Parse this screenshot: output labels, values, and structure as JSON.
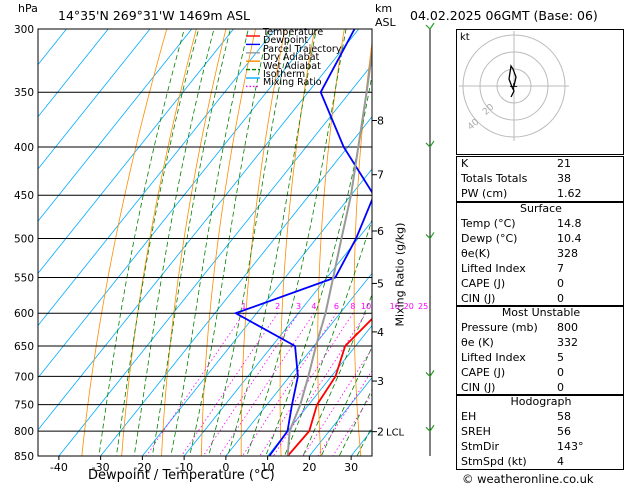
{
  "header": {
    "left_unit": "hPa",
    "location": "14°35'N  269°31'W  1469m  ASL",
    "right_unit_top": "km",
    "right_unit_bottom": "ASL",
    "datetime": "04.02.2025  06GMT  (Base: 06)"
  },
  "chart_data": {
    "type": "line",
    "title": "",
    "xlabel": "Dewpoint / Temperature (°C)",
    "y2label": "Mixing Ratio (g/kg)",
    "x_ticks": [
      -40,
      -30,
      -20,
      -10,
      0,
      10,
      20,
      30
    ],
    "pressure_levels": [
      300,
      350,
      400,
      450,
      500,
      550,
      600,
      650,
      700,
      750,
      800,
      850
    ],
    "xlim": [
      -45,
      35
    ],
    "ylim": [
      850,
      300
    ],
    "skew": "temperature lines slanted ~45°",
    "km_ticks": [
      {
        "km": 8,
        "p": 375
      },
      {
        "km": 7,
        "p": 428
      },
      {
        "km": 6,
        "p": 491
      },
      {
        "km": 5,
        "p": 558
      },
      {
        "km": 4,
        "p": 628
      },
      {
        "km": 3,
        "p": 708
      },
      {
        "km": 2,
        "p": 801
      }
    ],
    "lcl_label": "LCL",
    "lcl_pressure": 801,
    "mixing_ratio_labels": [
      "1",
      "2",
      "3",
      "4",
      "6",
      "8",
      "10",
      "16",
      "20",
      "25"
    ],
    "legend": [
      {
        "name": "Temperature",
        "color": "#ff0000"
      },
      {
        "name": "Dewpoint",
        "color": "#0000ff"
      },
      {
        "name": "Parcel Trajectory",
        "color": "#999999"
      },
      {
        "name": "Dry Adiabat",
        "color": "#ff8c00"
      },
      {
        "name": "Wet Adiabat",
        "color": "#008000"
      },
      {
        "name": "Isotherm",
        "color": "#00aaff"
      },
      {
        "name": "Mixing Ratio",
        "color": "#ff00ff"
      }
    ],
    "series": [
      {
        "name": "Temperature",
        "color": "#ff0000",
        "points": [
          [
            850,
            14.8
          ],
          [
            800,
            15.2
          ],
          [
            750,
            12.0
          ],
          [
            700,
            11.0
          ],
          [
            650,
            7.5
          ],
          [
            600,
            9.0
          ],
          [
            550,
            4.0
          ],
          [
            500,
            -1.5
          ],
          [
            450,
            -6.0
          ],
          [
            400,
            -11.0
          ],
          [
            350,
            -18.5
          ],
          [
            300,
            -27.0
          ]
        ]
      },
      {
        "name": "Dewpoint",
        "color": "#0000ff",
        "points": [
          [
            850,
            10.4
          ],
          [
            800,
            10.0
          ],
          [
            750,
            6.0
          ],
          [
            700,
            2.0
          ],
          [
            650,
            -4.5
          ],
          [
            600,
            -25.0
          ],
          [
            550,
            -8.0
          ],
          [
            500,
            -10.5
          ],
          [
            450,
            -14.5
          ],
          [
            400,
            -31.0
          ],
          [
            350,
            -47.0
          ],
          [
            300,
            -51.0
          ]
        ]
      },
      {
        "name": "Parcel Trajectory",
        "color": "#999999",
        "points": [
          [
            850,
            14.8
          ],
          [
            800,
            10.5
          ],
          [
            750,
            8.0
          ],
          [
            700,
            4.5
          ],
          [
            650,
            0.5
          ],
          [
            600,
            -3.5
          ],
          [
            550,
            -8.5
          ],
          [
            500,
            -14.0
          ],
          [
            450,
            -20.0
          ],
          [
            400,
            -27.5
          ],
          [
            350,
            -36.0
          ],
          [
            300,
            -46.0
          ]
        ]
      }
    ]
  },
  "hodograph": {
    "label": "kt",
    "ring_labels": [
      "20",
      "40"
    ]
  },
  "indices": [
    {
      "label": "K",
      "value": "21"
    },
    {
      "label": "Totals Totals",
      "value": "38"
    },
    {
      "label": "PW (cm)",
      "value": "1.62"
    }
  ],
  "surface": {
    "title": "Surface",
    "rows": [
      {
        "label": "Temp (°C)",
        "value": "14.8"
      },
      {
        "label": "Dewp (°C)",
        "value": "10.4"
      },
      {
        "label": "θe(K)",
        "value": "328"
      },
      {
        "label": "Lifted Index",
        "value": "7"
      },
      {
        "label": "CAPE (J)",
        "value": "0"
      },
      {
        "label": "CIN (J)",
        "value": "0"
      }
    ]
  },
  "most_unstable": {
    "title": "Most Unstable",
    "rows": [
      {
        "label": "Pressure (mb)",
        "value": "800"
      },
      {
        "label": "θe (K)",
        "value": "332"
      },
      {
        "label": "Lifted Index",
        "value": "5"
      },
      {
        "label": "CAPE (J)",
        "value": "0"
      },
      {
        "label": "CIN (J)",
        "value": "0"
      }
    ]
  },
  "hodograph_table": {
    "title": "Hodograph",
    "rows": [
      {
        "label": "EH",
        "value": "58"
      },
      {
        "label": "SREH",
        "value": "56"
      },
      {
        "label": "StmDir",
        "value": "143°"
      },
      {
        "label": "StmSpd (kt)",
        "value": "4"
      }
    ]
  },
  "copyright": "© weatheronline.co.uk"
}
